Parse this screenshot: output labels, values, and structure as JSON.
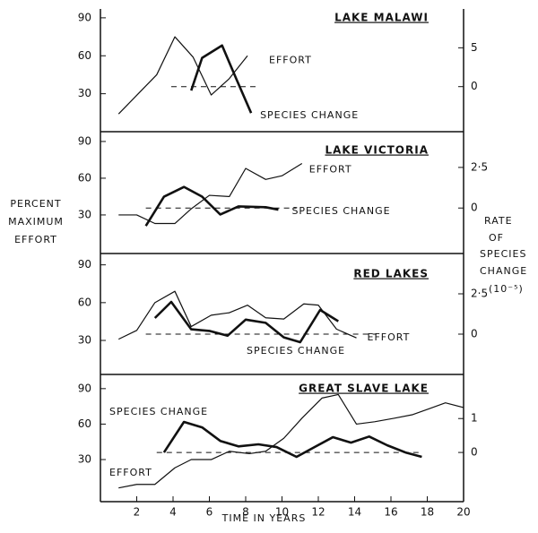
{
  "ylabel": [
    "PERCENT",
    "MAXIMUM",
    "EFFORT"
  ],
  "y2label": [
    "RATE",
    "OF",
    "SPECIES",
    "CHANGE",
    "(10⁻⁵)"
  ],
  "chart_data": [
    {
      "type": "line",
      "title": "LAKE MALAWI",
      "xlim": [
        0,
        20
      ],
      "ylim": [
        0,
        97
      ],
      "yticks": [
        30,
        60,
        90
      ],
      "y2lim": [
        -5.8,
        10
      ],
      "y2ticks": [
        0,
        5
      ],
      "zero_line": {
        "value": 0,
        "from": 3.9,
        "to": 8.7
      },
      "series": [
        {
          "name": "EFFORT",
          "color": "#111111",
          "x": [
            1.0,
            3.1,
            4.1,
            5.1,
            6.1,
            7.1,
            8.1
          ],
          "values": [
            14,
            45,
            75,
            59,
            29,
            42,
            60
          ]
        },
        {
          "name": "SPECIES CHANGE",
          "color": "#111111",
          "axis": "y2",
          "x": [
            5.0,
            5.6,
            6.7,
            7.5,
            8.3
          ],
          "values": [
            -0.5,
            3.7,
            5.3,
            0.9,
            -3.4
          ]
        }
      ]
    },
    {
      "type": "line",
      "title": "LAKE VICTORIA",
      "xlim": [
        0,
        20
      ],
      "ylim": [
        -1.5,
        98
      ],
      "yticks": [
        30,
        60,
        90
      ],
      "y2lim": [
        -2.8,
        4.7
      ],
      "y2ticks": [
        0,
        {
          "value": 2.5,
          "label": "2·5"
        }
      ],
      "zero_line": {
        "value": 0,
        "from": 2.5,
        "to": 10.8
      },
      "series": [
        {
          "name": "EFFORT",
          "color": "#111111",
          "x": [
            1.0,
            2.0,
            3.0,
            4.1,
            5.0,
            6.0,
            7.1,
            8.0,
            9.1,
            10.0,
            11.1
          ],
          "values": [
            30,
            30,
            23,
            23,
            35,
            46,
            45,
            68,
            59,
            62,
            72
          ]
        },
        {
          "name": "SPECIES CHANGE",
          "color": "#111111",
          "axis": "y2",
          "x": [
            2.5,
            3.5,
            4.6,
            5.6,
            6.6,
            7.6,
            9.1,
            9.8
          ],
          "values": [
            -1.1,
            0.7,
            1.3,
            0.7,
            -0.4,
            0.1,
            0.05,
            -0.1
          ]
        }
      ]
    },
    {
      "type": "line",
      "title": "RED LAKES",
      "xlim": [
        0,
        20
      ],
      "ylim": [
        3,
        99
      ],
      "yticks": [
        30,
        60,
        90
      ],
      "y2lim": [
        -2.5,
        5
      ],
      "y2ticks": [
        0,
        {
          "value": 2.5,
          "label": "2·5"
        }
      ],
      "zero_line": {
        "value": 0,
        "from": 2.5,
        "to": 15.2
      },
      "series": [
        {
          "name": "EFFORT",
          "color": "#111111",
          "x": [
            1.0,
            2.0,
            3.0,
            4.1,
            5.0,
            6.1,
            7.1,
            8.1,
            9.1,
            10.1,
            11.2,
            12.0,
            13.0,
            14.1
          ],
          "values": [
            31,
            38,
            60,
            69,
            41,
            50,
            52,
            58,
            48,
            47,
            59,
            58,
            39,
            32
          ]
        },
        {
          "name": "SPECIES CHANGE",
          "color": "#111111",
          "axis": "y2",
          "x": [
            3.0,
            3.9,
            5.0,
            6.0,
            7.0,
            8.0,
            9.1,
            10.1,
            11.0,
            12.1,
            13.1
          ],
          "values": [
            1.0,
            2.0,
            0.3,
            0.2,
            -0.1,
            0.9,
            0.7,
            -0.2,
            -0.5,
            1.5,
            0.8
          ]
        }
      ]
    },
    {
      "type": "line",
      "title": "GREAT SLAVE LAKE",
      "xlabel": "TIME IN YEARS",
      "xlim": [
        0,
        20
      ],
      "xticks": [
        2,
        4,
        6,
        8,
        10,
        12,
        14,
        16,
        18,
        20
      ],
      "ylim": [
        -5.6,
        102
      ],
      "yticks": [
        30,
        60,
        90
      ],
      "y2lim": [
        -1.45,
        2.3
      ],
      "y2ticks": [
        0,
        1
      ],
      "zero_line": {
        "value": 0,
        "from": 3.1,
        "to": 17.6
      },
      "series": [
        {
          "name": "EFFORT",
          "color": "#111111",
          "x": [
            1.0,
            2.0,
            3.0,
            4.1,
            5.0,
            6.1,
            7.1,
            8.2,
            9.1,
            10.1,
            11.1,
            12.2,
            13.1,
            14.1,
            15.1,
            16.2,
            17.2,
            18.1,
            19.0,
            20.0
          ],
          "values": [
            6,
            9,
            9,
            23,
            30,
            30,
            37,
            35,
            37,
            48,
            65,
            82,
            85,
            60,
            62,
            65,
            68,
            73,
            78,
            74
          ]
        },
        {
          "name": "SPECIES CHANGE",
          "color": "#111111",
          "axis": "y2",
          "x": [
            3.5,
            4.6,
            5.6,
            6.6,
            7.6,
            8.7,
            9.7,
            10.8,
            11.8,
            12.8,
            13.8,
            14.8,
            15.8,
            16.8,
            17.7
          ],
          "values": [
            0,
            0.9,
            0.74,
            0.34,
            0.18,
            0.24,
            0.16,
            -0.13,
            0.16,
            0.45,
            0.29,
            0.47,
            0.21,
            0,
            -0.13
          ]
        }
      ]
    }
  ]
}
